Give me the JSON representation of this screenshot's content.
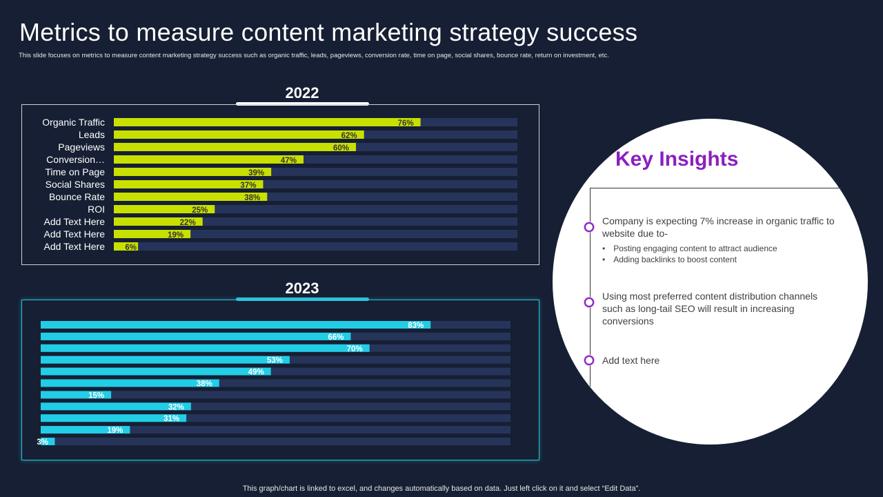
{
  "header": {
    "title": "Metrics to measure content marketing strategy success",
    "subtitle": "This slide focuses on metrics to measure content marketing strategy success such as organic traffic, leads, pageviews, conversion rate, time on page, social shares, bounce rate, return on investment, etc."
  },
  "chart_data": [
    {
      "type": "bar",
      "orientation": "horizontal",
      "title": "2022",
      "categories": [
        "Organic Traffic",
        "Leads",
        "Pageviews",
        "Conversion…",
        "Time on Page",
        "Social Shares",
        "Bounce Rate",
        "ROI",
        "Add Text Here",
        "Add Text Here",
        "Add Text Here"
      ],
      "values": [
        76,
        62,
        60,
        47,
        39,
        37,
        38,
        25,
        22,
        19,
        6
      ],
      "value_labels": [
        "76%",
        "62%",
        "60%",
        "47%",
        "39%",
        "37%",
        "38%",
        "25%",
        "22%",
        "19%",
        "6%"
      ],
      "xlim": [
        0,
        100
      ],
      "bar_color": "#c8e000",
      "track_color": "#27345a",
      "label_color": "#333333"
    },
    {
      "type": "bar",
      "orientation": "horizontal",
      "title": "2023",
      "values": [
        83,
        66,
        70,
        53,
        49,
        38,
        15,
        32,
        31,
        19,
        3
      ],
      "value_labels": [
        "83%",
        "66%",
        "70%",
        "53%",
        "49%",
        "38%",
        "15%",
        "32%",
        "31%",
        "19%",
        "3%"
      ],
      "xlim": [
        0,
        100
      ],
      "bar_color": "#22cde6",
      "track_color": "#27345a",
      "label_color": "#ffffff"
    }
  ],
  "insights": {
    "title": "Key Insights",
    "item1": "Company is expecting 7% increase in organic traffic to website due to-",
    "bullets": [
      "Posting engaging content to attract audience",
      "Adding backlinks to boost content"
    ],
    "item2": "Using most preferred content distribution channels such as long-tail SEO will result in increasing conversions",
    "item3": "Add text here"
  },
  "footer": "This graph/chart is linked to excel,  and changes automatically based on data. Just left click on it and select “Edit Data”.",
  "colors": {
    "background": "#161f33",
    "accent_purple": "#8a1fbf",
    "panel_2022_border": "#cfd3dc",
    "panel_2023_border": "#2fc3d9"
  }
}
